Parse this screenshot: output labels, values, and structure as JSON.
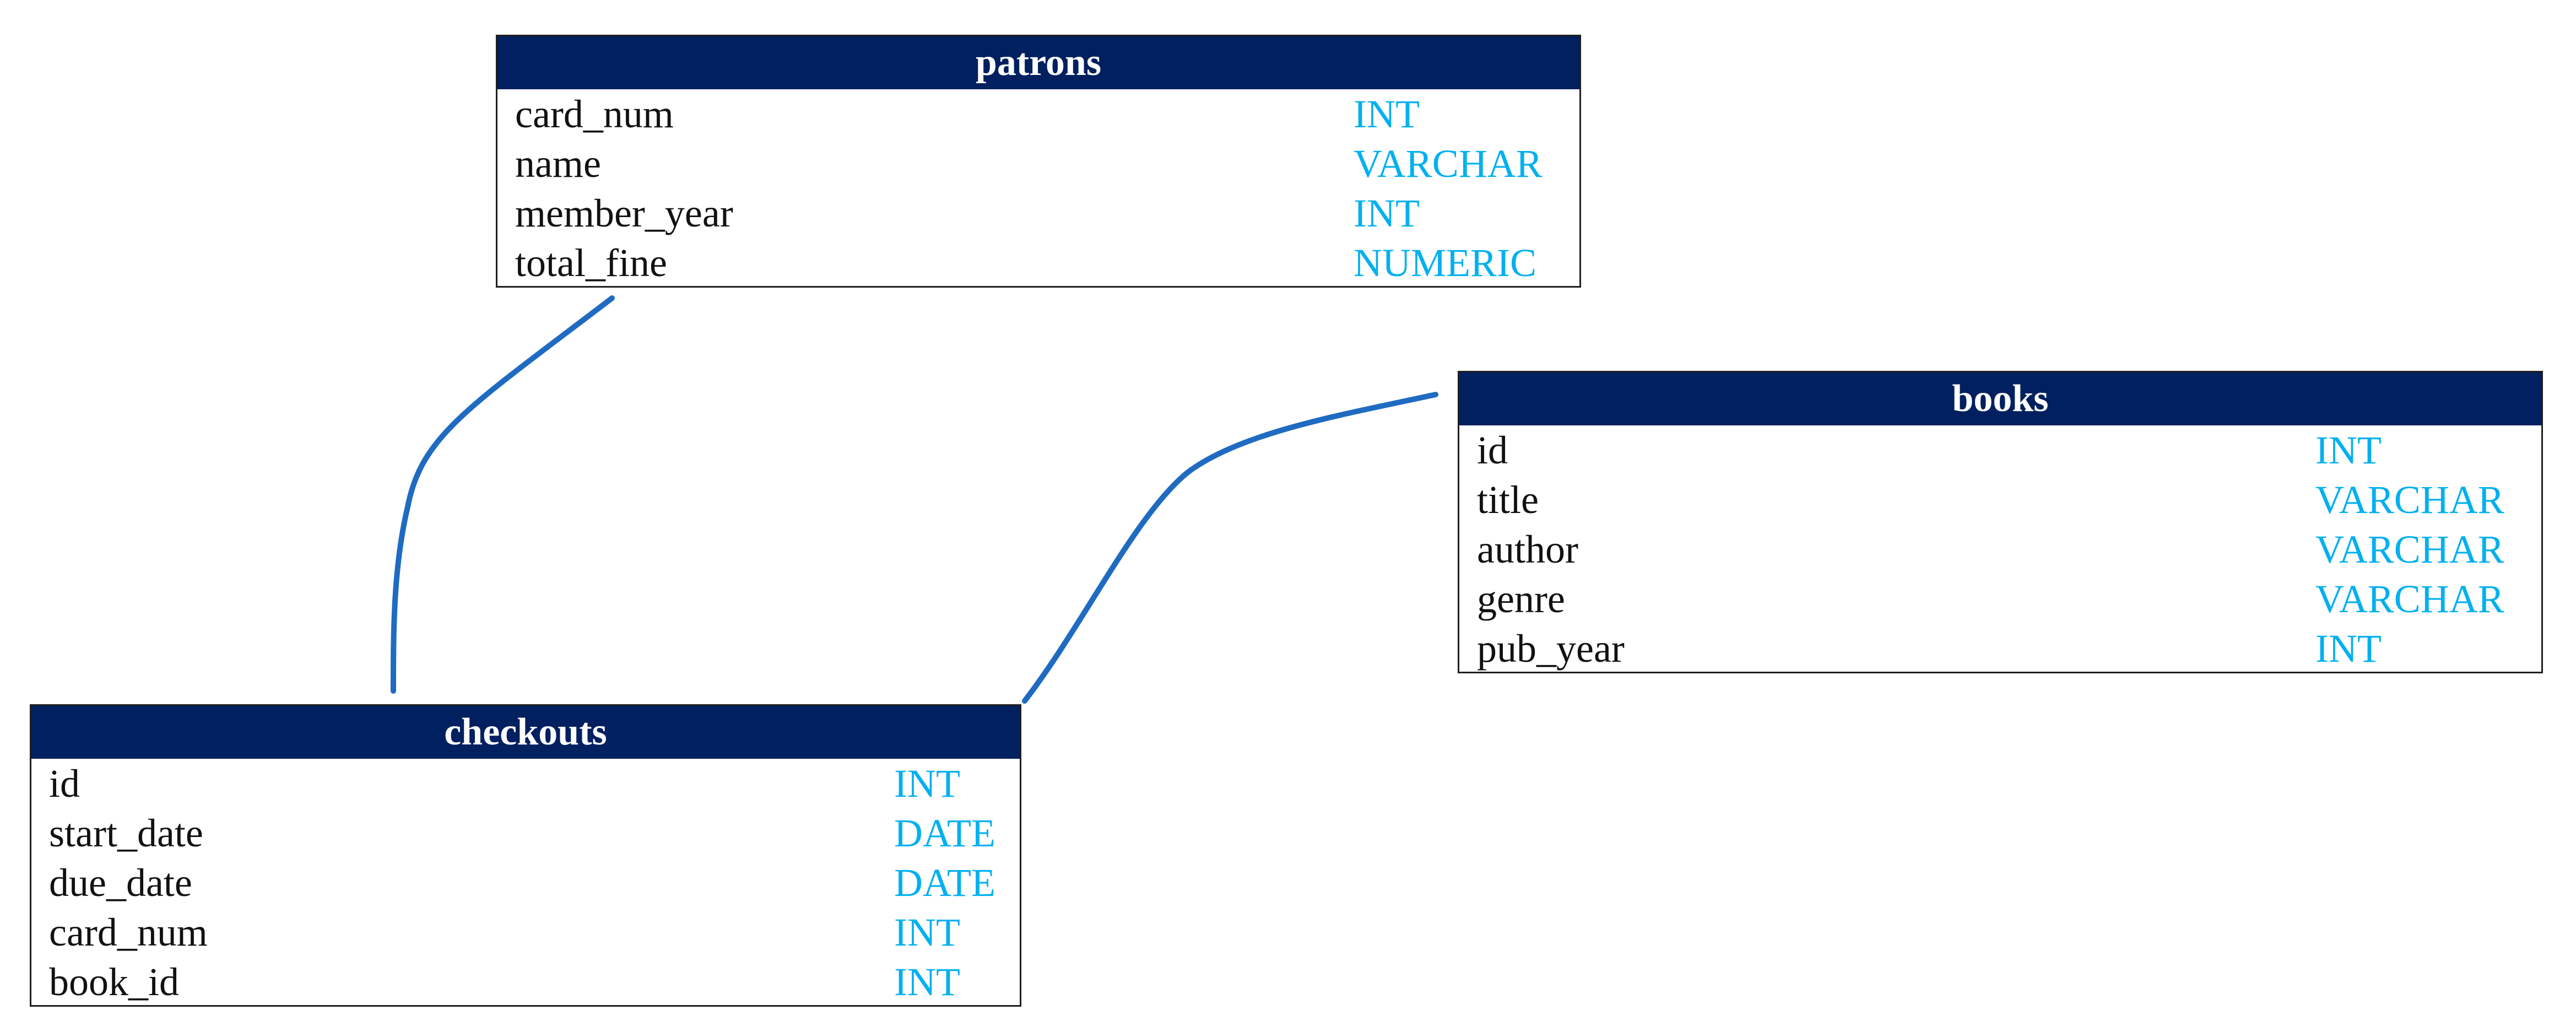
{
  "diagram": {
    "line_color": "#1F6BC2",
    "header_color": "#002060",
    "type_color": "#00B0F0"
  },
  "tables": {
    "patrons": {
      "title": "patrons",
      "columns": [
        {
          "name": "card_num",
          "type": "INT"
        },
        {
          "name": "name",
          "type": "VARCHAR"
        },
        {
          "name": "member_year",
          "type": "INT"
        },
        {
          "name": "total_fine",
          "type": "NUMERIC"
        }
      ]
    },
    "books": {
      "title": "books",
      "columns": [
        {
          "name": "id",
          "type": "INT"
        },
        {
          "name": "title",
          "type": "VARCHAR"
        },
        {
          "name": "author",
          "type": "VARCHAR"
        },
        {
          "name": "genre",
          "type": "VARCHAR"
        },
        {
          "name": "pub_year",
          "type": "INT"
        }
      ]
    },
    "checkouts": {
      "title": "checkouts",
      "columns": [
        {
          "name": "id",
          "type": "INT"
        },
        {
          "name": "start_date",
          "type": "DATE"
        },
        {
          "name": "due_date",
          "type": "DATE"
        },
        {
          "name": "card_num",
          "type": "INT"
        },
        {
          "name": "book_id",
          "type": "INT"
        }
      ]
    }
  },
  "relationships": [
    {
      "from": "patrons",
      "to": "checkouts"
    },
    {
      "from": "books",
      "to": "checkouts"
    }
  ]
}
